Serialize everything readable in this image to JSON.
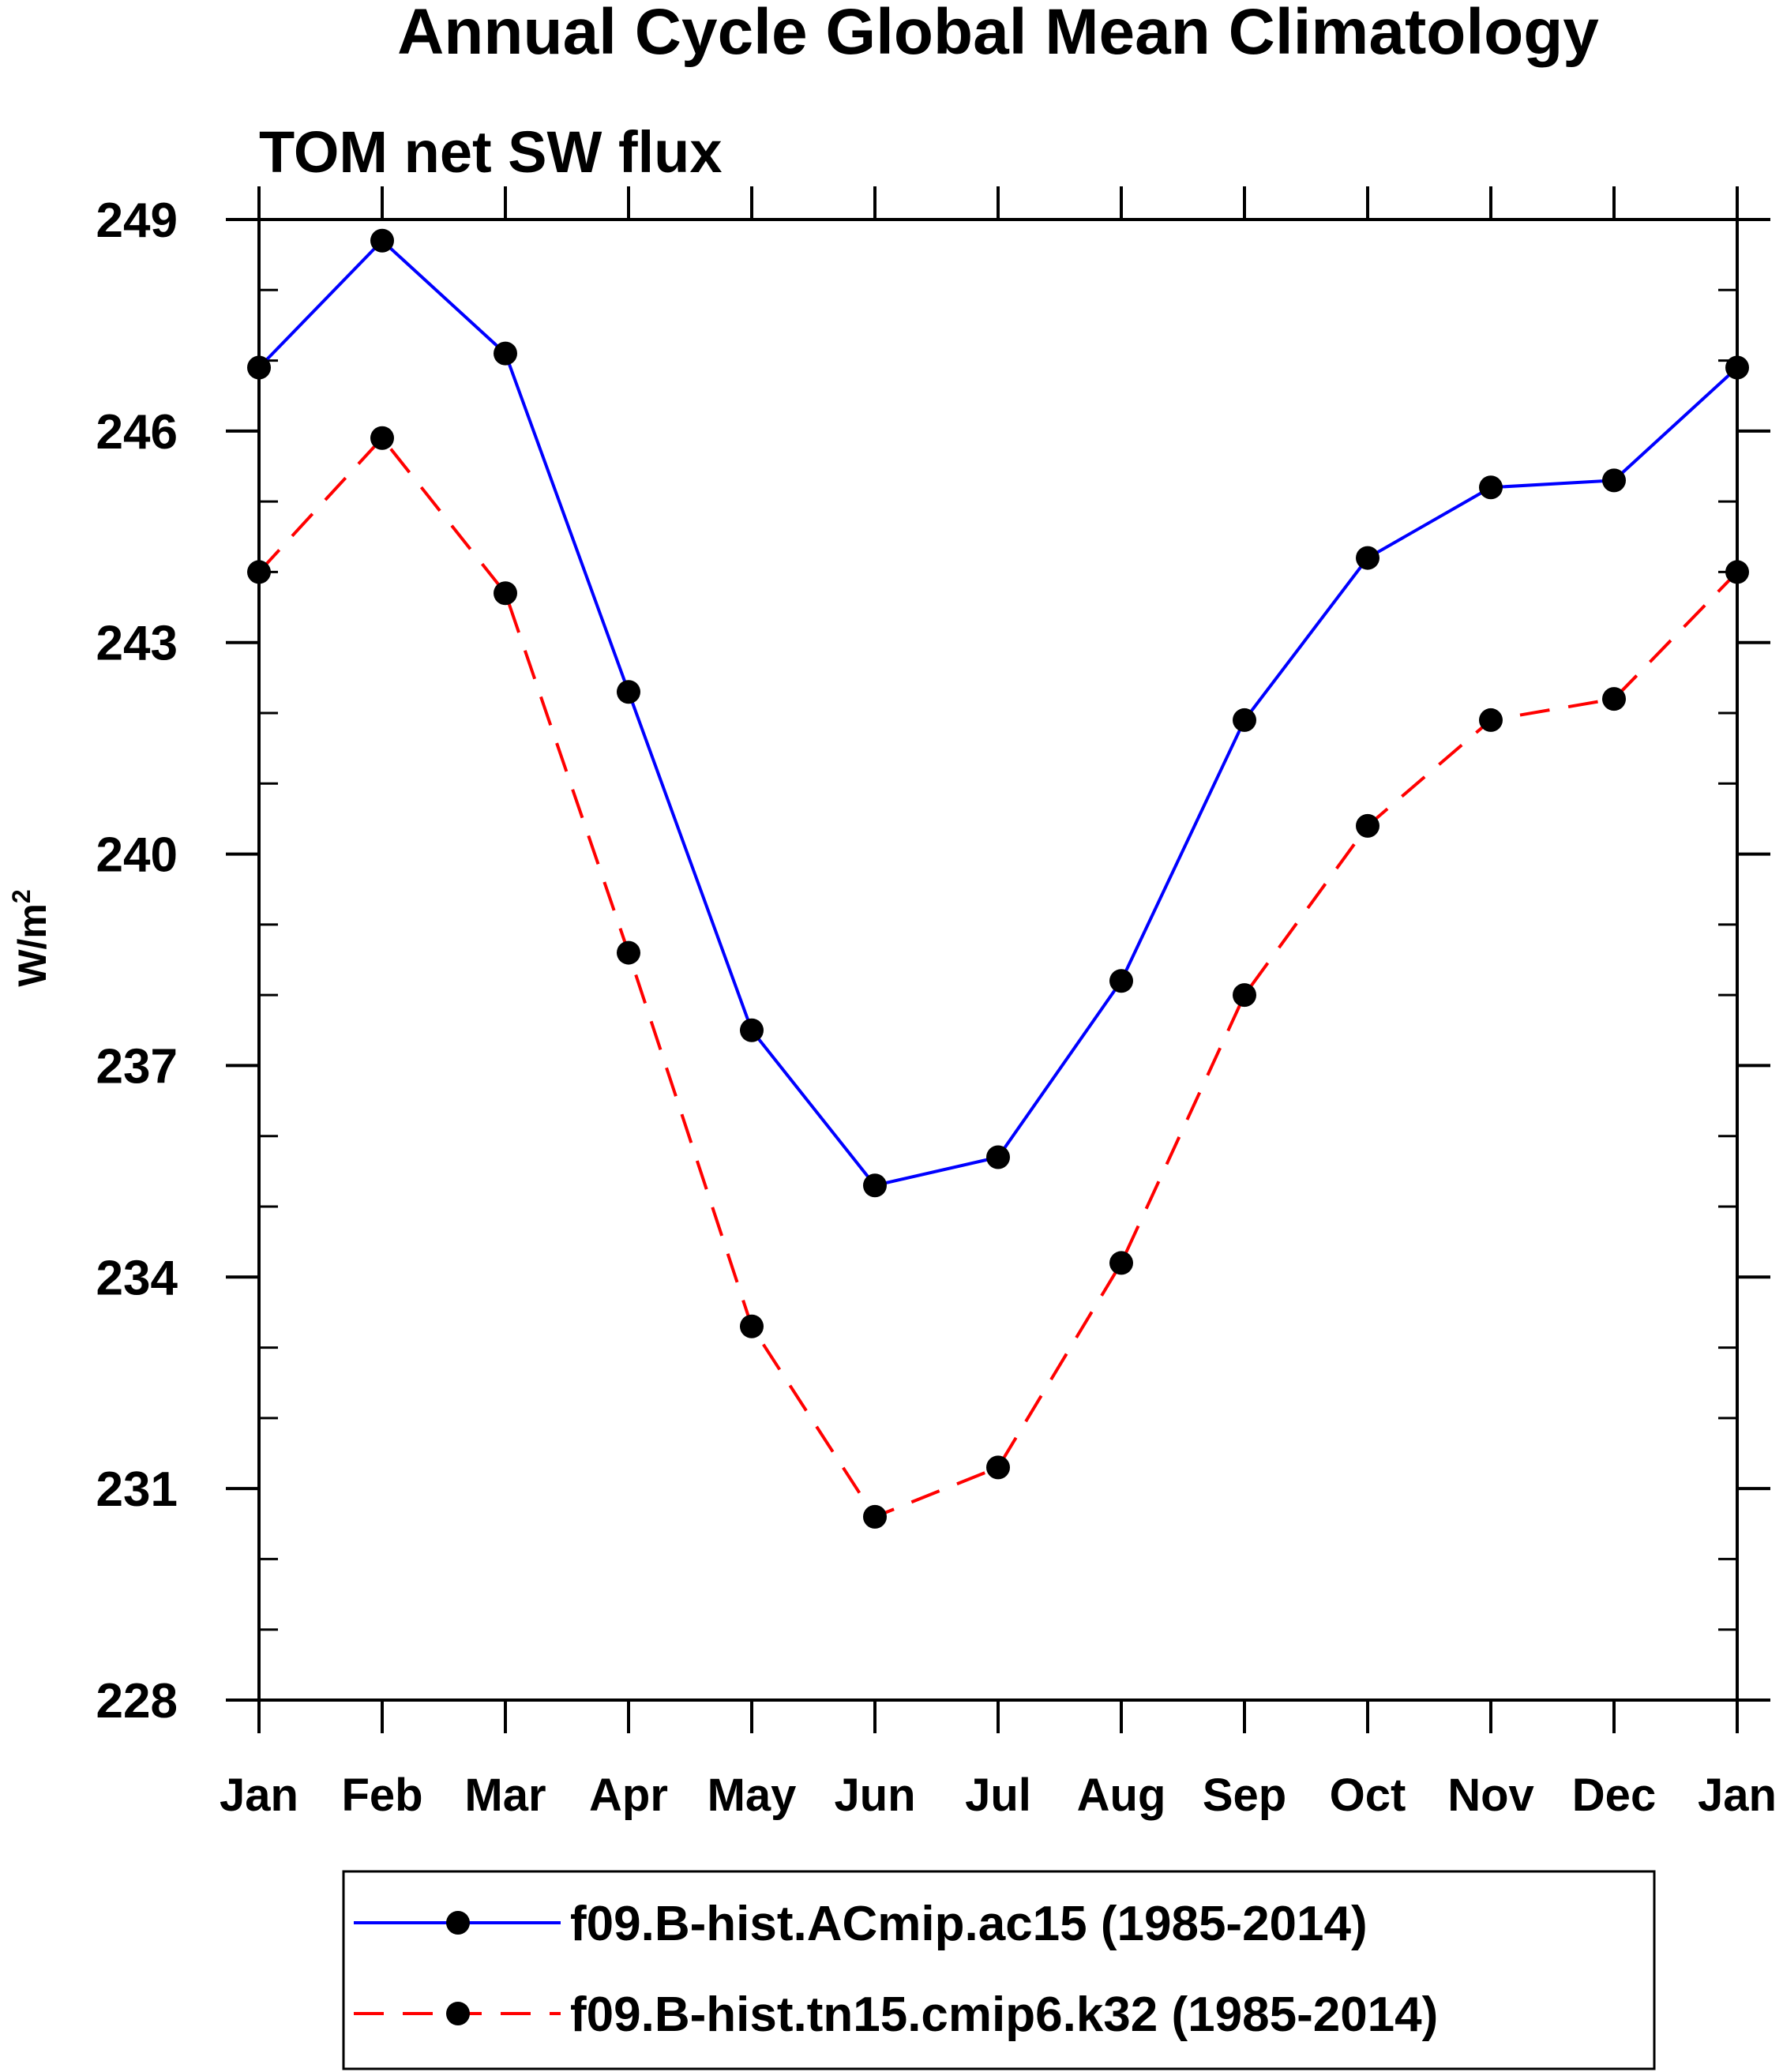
{
  "chart_data": {
    "type": "line",
    "title": "Annual Cycle Global Mean Climatology",
    "subtitle": "TOM net SW flux",
    "xlabel": "",
    "ylabel": "W/m",
    "ylabel_superscript": "2",
    "categories": [
      "Jan",
      "Feb",
      "Mar",
      "Apr",
      "May",
      "Jun",
      "Jul",
      "Aug",
      "Sep",
      "Oct",
      "Nov",
      "Dec",
      "Jan"
    ],
    "ylim": [
      228,
      249
    ],
    "yticks": [
      228,
      231,
      234,
      237,
      240,
      243,
      246,
      249
    ],
    "yminor_step": 1,
    "grid": false,
    "legend_position": "bottom",
    "series": [
      {
        "name": "f09.B-hist.ACmip.ac15 (1985-2014)",
        "color": "#0000ff",
        "line_style": "solid",
        "marker": "filled-circle",
        "values": [
          246.9,
          248.7,
          247.1,
          242.3,
          237.5,
          235.3,
          235.7,
          238.2,
          241.9,
          244.2,
          245.2,
          245.3,
          246.9
        ]
      },
      {
        "name": "f09.B-hist.tn15.cmip6.k32 (1985-2014)",
        "color": "#ff0000",
        "line_style": "dashed",
        "marker": "filled-circle",
        "values": [
          244.0,
          245.9,
          243.7,
          238.6,
          233.3,
          230.6,
          231.3,
          234.2,
          238.0,
          240.4,
          241.9,
          242.2,
          244.0
        ]
      }
    ]
  }
}
